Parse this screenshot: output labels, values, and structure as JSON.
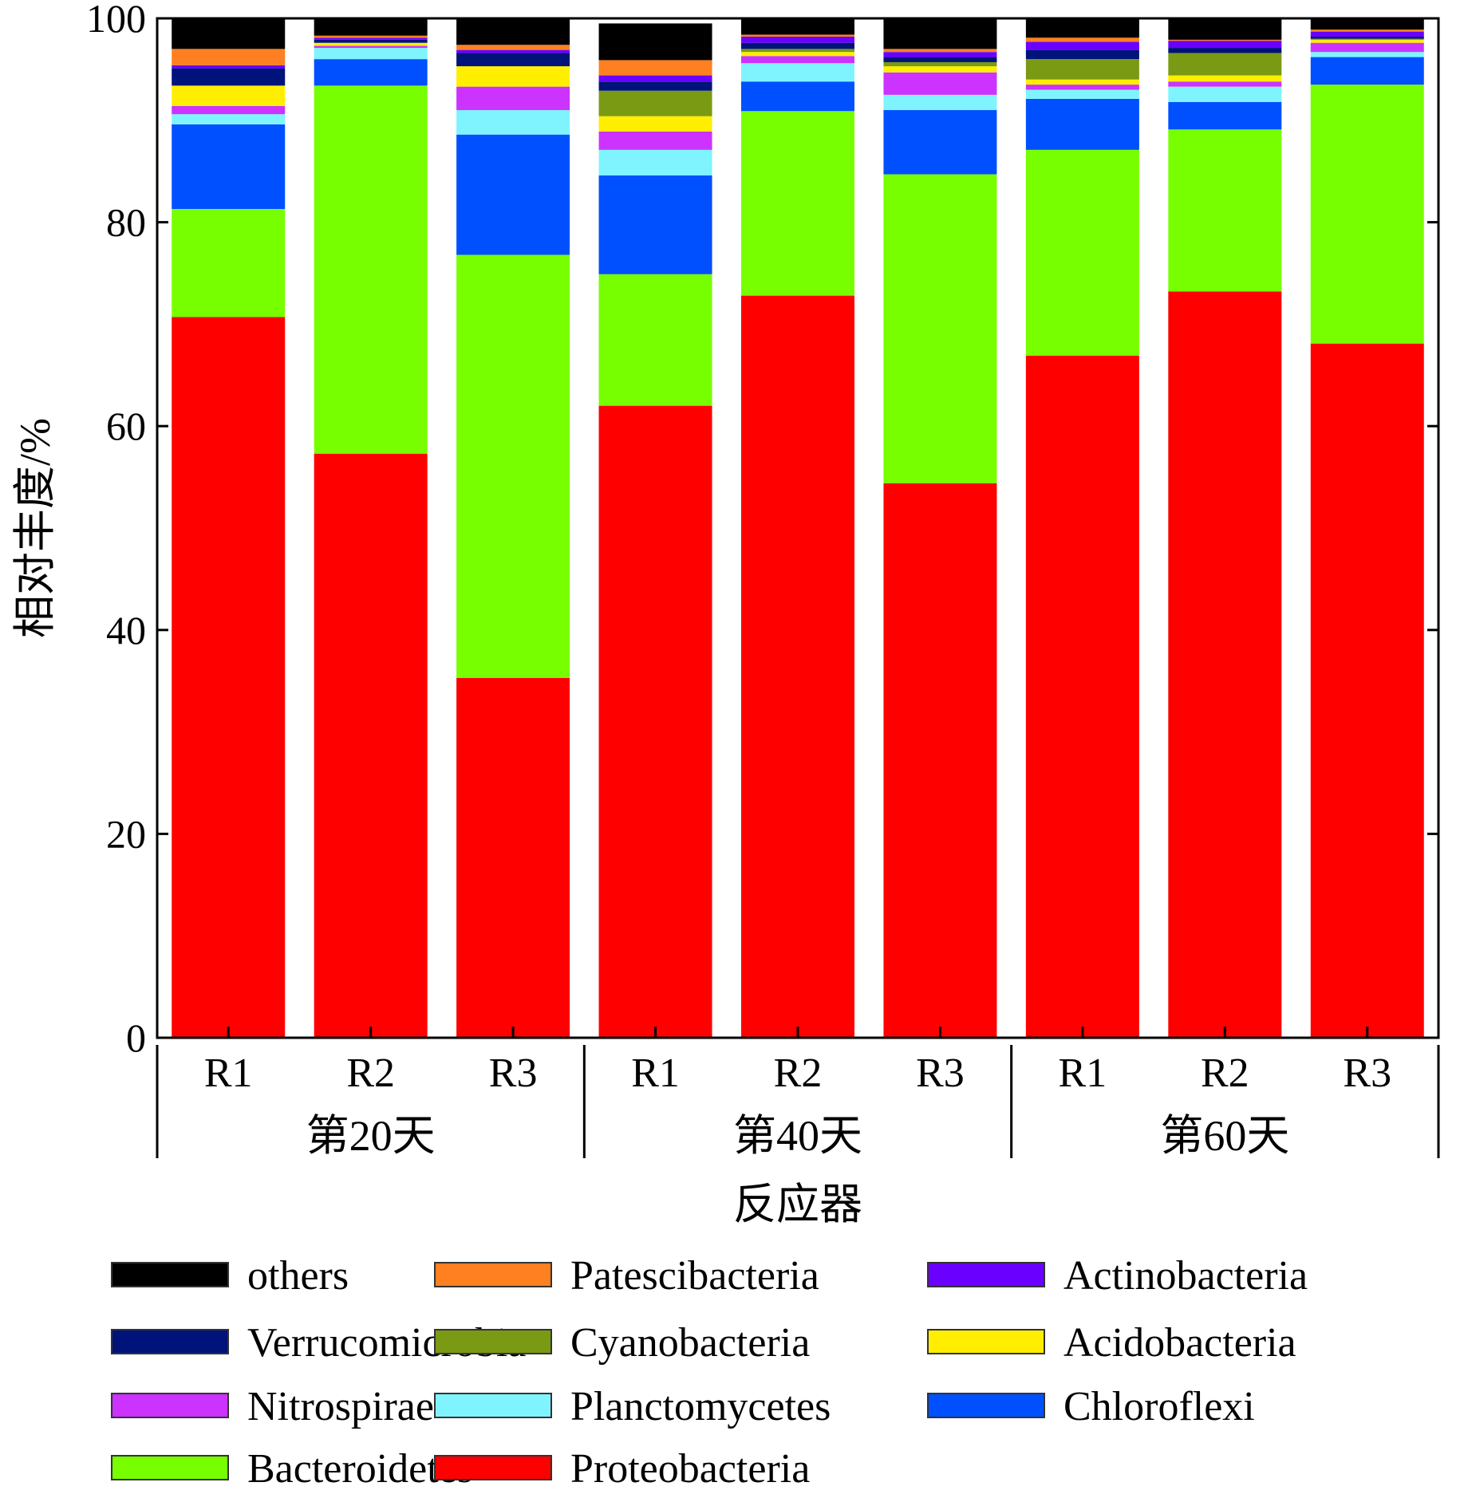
{
  "chart_data": {
    "type": "bar",
    "stacked": true,
    "ylabel": "相对丰度/%",
    "xlabel": "反应器",
    "ylim": [
      0,
      100
    ],
    "yticks": [
      0,
      20,
      40,
      60,
      80,
      100
    ],
    "grid": false,
    "legend_position": "bottom",
    "categories": [
      "R1",
      "R2",
      "R3",
      "R1",
      "R2",
      "R3",
      "R1",
      "R2",
      "R3"
    ],
    "groups": [
      {
        "label": "第20天",
        "categories": [
          "R1",
          "R2",
          "R3"
        ]
      },
      {
        "label": "第40天",
        "categories": [
          "R1",
          "R2",
          "R3"
        ]
      },
      {
        "label": "第60天",
        "categories": [
          "R1",
          "R2",
          "R3"
        ]
      }
    ],
    "series": [
      {
        "name": "Proteobacteria",
        "color": "#ff0000",
        "values": [
          70.7,
          57.3,
          35.3,
          62.0,
          72.8,
          54.4,
          66.9,
          73.2,
          68.1
        ]
      },
      {
        "name": "Bacteroidetes",
        "color": "#77ff00",
        "values": [
          10.6,
          36.1,
          41.5,
          12.9,
          18.1,
          30.3,
          20.2,
          15.9,
          25.4
        ]
      },
      {
        "name": "Chloroflexi",
        "color": "#0050ff",
        "values": [
          8.3,
          2.6,
          11.8,
          9.7,
          2.9,
          6.3,
          5.0,
          2.7,
          2.7
        ]
      },
      {
        "name": "Planctomycetes",
        "color": "#7ff4ff",
        "values": [
          1.0,
          1.1,
          2.4,
          2.5,
          1.8,
          1.5,
          0.9,
          1.5,
          0.5
        ]
      },
      {
        "name": "Nitrospirae",
        "color": "#cc33ff",
        "values": [
          0.8,
          0.2,
          2.3,
          1.8,
          0.7,
          2.2,
          0.5,
          0.5,
          0.9
        ]
      },
      {
        "name": "Acidobacteria",
        "color": "#ffee00",
        "values": [
          2.0,
          0.3,
          2.0,
          1.5,
          0.4,
          0.6,
          0.5,
          0.6,
          0.3
        ]
      },
      {
        "name": "Cyanobacteria",
        "color": "#7a9a14",
        "values": [
          0.0,
          0.0,
          0.0,
          2.5,
          0.3,
          0.4,
          2.0,
          2.2,
          0.1
        ]
      },
      {
        "name": "Verrucomicrobia",
        "color": "#00137a",
        "values": [
          1.7,
          0.3,
          1.3,
          0.9,
          0.6,
          0.5,
          0.9,
          0.5,
          0.2
        ]
      },
      {
        "name": "Actinobacteria",
        "color": "#6a00ff",
        "values": [
          0.3,
          0.2,
          0.3,
          0.6,
          0.6,
          0.5,
          0.8,
          0.7,
          0.5
        ]
      },
      {
        "name": "Patescibacteria",
        "color": "#ff8020",
        "values": [
          1.6,
          0.2,
          0.5,
          1.5,
          0.2,
          0.3,
          0.4,
          0.1,
          0.2
        ]
      },
      {
        "name": "others",
        "color": "#000000",
        "values": [
          3.0,
          1.7,
          2.6,
          3.6,
          1.6,
          3.0,
          1.9,
          2.1,
          1.1
        ]
      }
    ],
    "legend_order": [
      "others",
      "Patescibacteria",
      "Actinobacteria",
      "Verrucomicrobia",
      "Cyanobacteria",
      "Acidobacteria",
      "Nitrospirae",
      "Planctomycetes",
      "Chloroflexi",
      "Bacteroidetes",
      "Proteobacteria"
    ]
  }
}
